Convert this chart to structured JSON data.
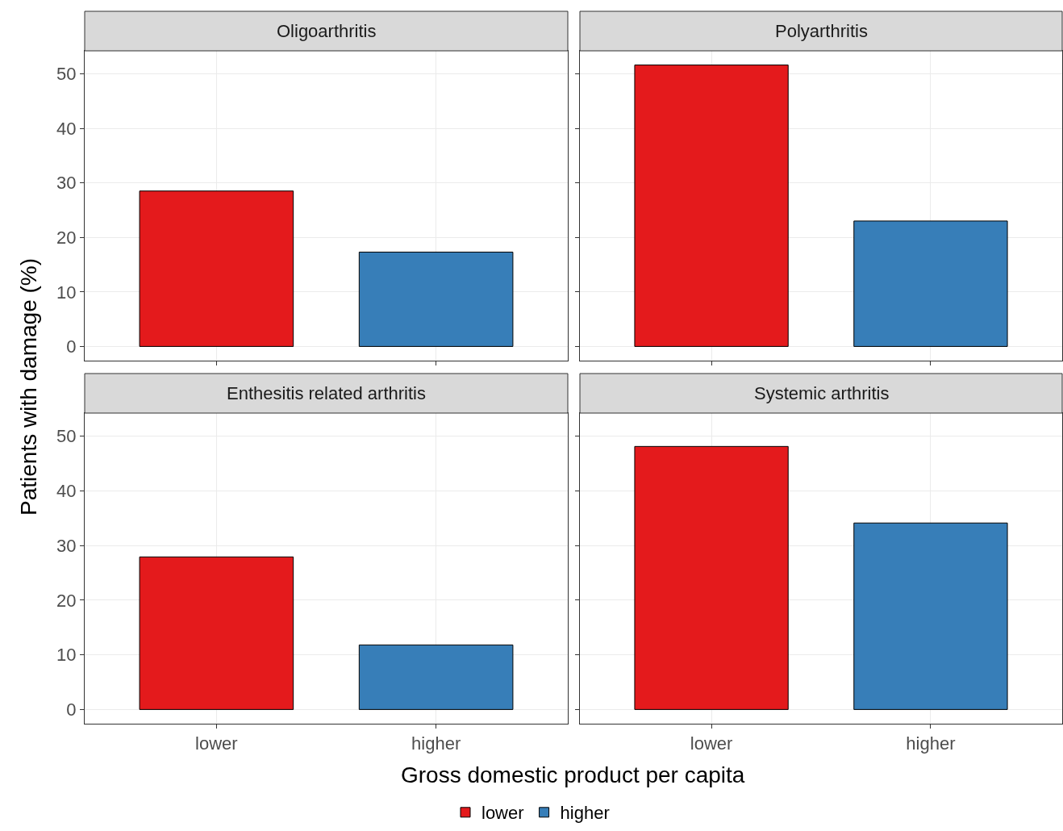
{
  "chart_data": [
    {
      "type": "bar",
      "title": "Oligoarthritis",
      "ylabel": "Patients with damage (%)",
      "categories": [
        "lower",
        "higher"
      ],
      "series": [
        {
          "name": "lower",
          "color": "#e41a1c",
          "values": [
            28.5,
            null
          ]
        },
        {
          "name": "higher",
          "color": "#377eb8",
          "values": [
            null,
            17.3
          ]
        }
      ],
      "ylim": [
        -2.6,
        54.2
      ],
      "yticks": [
        0,
        10,
        20,
        30,
        40,
        50
      ],
      "grid": true,
      "legend": "bottom",
      "tick_labels": "y"
    },
    {
      "type": "bar",
      "title": "Polyarthritis",
      "categories": [
        "lower",
        "higher"
      ],
      "series": [
        {
          "color": "#e41a1c",
          "values": [
            51.6,
            null
          ]
        },
        {
          "color": "#377eb8",
          "values": [
            null,
            23.0
          ]
        }
      ],
      "ylim": [
        -2.6,
        54.2
      ],
      "yticks": [
        0,
        10,
        20,
        30,
        40,
        50
      ],
      "grid": true,
      "tick_labels": false
    },
    {
      "type": "bar",
      "title": "Enthesitis related arthritis",
      "xlabel": "Gross domestic product per capita",
      "categories": [
        "lower",
        "higher"
      ],
      "series": [
        {
          "color": "#e41a1c",
          "values": [
            27.9,
            null
          ]
        },
        {
          "color": "#377eb8",
          "values": [
            null,
            11.8
          ]
        }
      ],
      "ylim": [
        -2.6,
        54.2
      ],
      "yticks": [
        0,
        10,
        20,
        30,
        40,
        50
      ],
      "grid": true
    },
    {
      "type": "bar",
      "title": "Systemic arthritis",
      "categories": [
        "lower",
        "higher"
      ],
      "series": [
        {
          "color": "#e41a1c",
          "values": [
            48.1,
            null
          ]
        },
        {
          "color": "#377eb8",
          "values": [
            null,
            34.1
          ]
        }
      ],
      "ylim": [
        -2.6,
        54.2
      ],
      "yticks": [
        0,
        10,
        20,
        30,
        40,
        50
      ],
      "grid": true,
      "tick_labels": "x"
    }
  ]
}
